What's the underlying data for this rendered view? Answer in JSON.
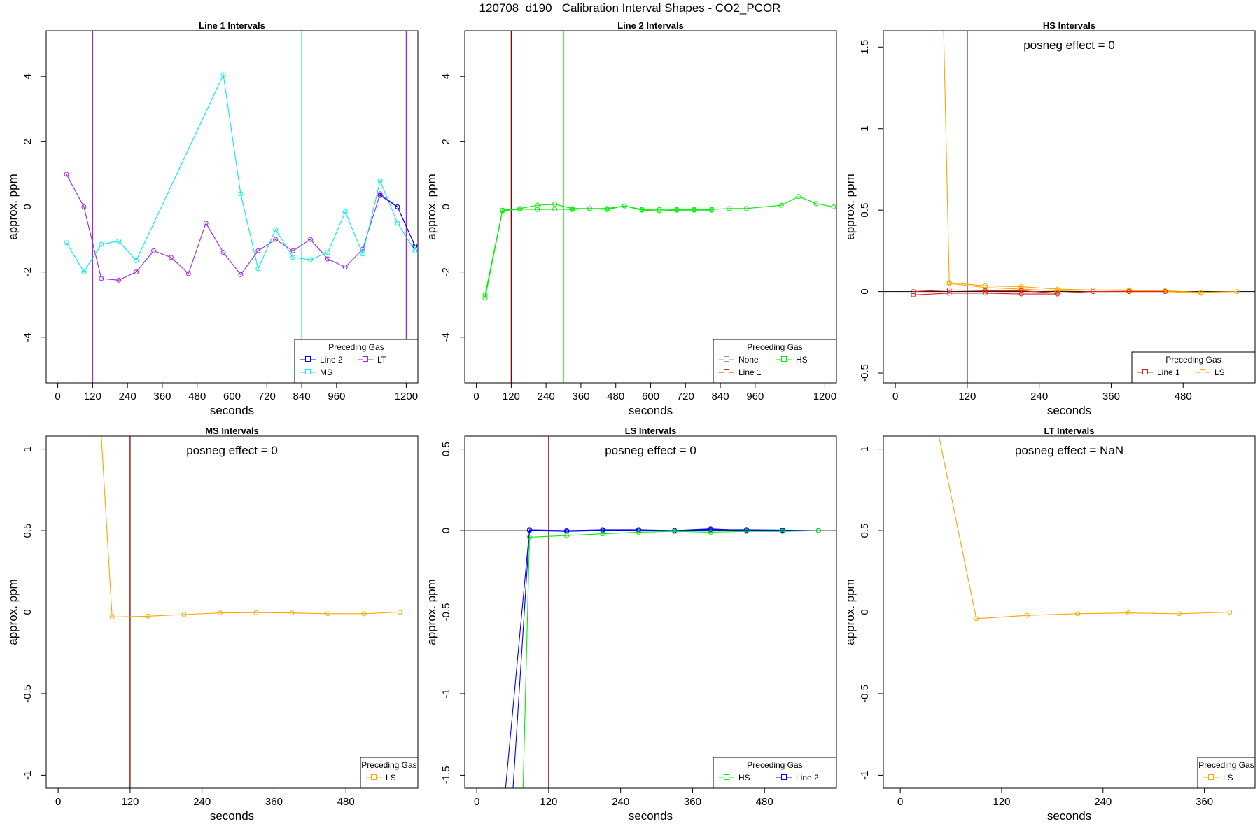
{
  "title": "120708  d190   Calibration Interval Shapes - CO2_PCOR",
  "colors": {
    "Line 1": "#dd2222",
    "Line 2": "#0000ff",
    "None": "#999999",
    "HS": "#00ee00",
    "MS": "#00eeee",
    "LS": "#ffa500",
    "LT": "#a020f0",
    "marker_line": "#8b0000",
    "axis": "#000000"
  },
  "chart_data": [
    {
      "type": "line",
      "title": "Line 1 Intervals",
      "xlabel": "seconds",
      "ylabel": "approx. ppm",
      "xlim": [
        -40,
        1240
      ],
      "ylim": [
        -5.4,
        5.4
      ],
      "xticks": [
        0,
        120,
        240,
        360,
        480,
        600,
        720,
        840,
        960,
        1200
      ],
      "yticks": [
        -4,
        -2,
        0,
        2,
        4
      ],
      "annotation": "",
      "legend": {
        "title": "Preceding Gas",
        "position": "bottom-right",
        "columns": 2,
        "entries": [
          "Line 2",
          "LT",
          "MS"
        ]
      },
      "vlines": [
        {
          "x": 120,
          "series": "Line 2"
        },
        {
          "x": 120,
          "series": "LT"
        },
        {
          "x": 840,
          "series": "MS"
        },
        {
          "x": 1200,
          "series": "LT"
        }
      ],
      "series": [
        {
          "name": "LT",
          "x": [
            30,
            90,
            150,
            210,
            270,
            330,
            390,
            450,
            510,
            570,
            630,
            690,
            750,
            810,
            870,
            930,
            990,
            1050,
            1110,
            1170,
            1230
          ],
          "y": [
            1.0,
            0.0,
            -2.2,
            -2.25,
            -2.0,
            -1.35,
            -1.55,
            -2.05,
            -0.5,
            -1.4,
            -2.08,
            -1.35,
            -1.0,
            -1.35,
            -1.0,
            -1.6,
            -1.85,
            -1.3,
            0.4,
            0.0,
            -1.2
          ]
        },
        {
          "name": "MS",
          "x": [
            30,
            90,
            150,
            210,
            270,
            570,
            630,
            690,
            750,
            810,
            870,
            930,
            990,
            1050,
            1110,
            1170,
            1230
          ],
          "y": [
            -1.1,
            -2.0,
            -1.15,
            -1.05,
            -1.65,
            4.05,
            0.4,
            -1.9,
            -0.7,
            -1.55,
            -1.62,
            -1.4,
            -0.15,
            -1.45,
            0.8,
            -0.5,
            -1.35
          ]
        },
        {
          "name": "Line 2",
          "x": [
            1110,
            1170,
            1230
          ],
          "y": [
            0.35,
            0.0,
            -1.2
          ]
        }
      ]
    },
    {
      "type": "line",
      "title": "Line 2 Intervals",
      "xlabel": "seconds",
      "ylabel": "approx. ppm",
      "xlim": [
        -40,
        1240
      ],
      "ylim": [
        -5.4,
        5.4
      ],
      "xticks": [
        0,
        120,
        240,
        360,
        480,
        600,
        720,
        840,
        960,
        1200
      ],
      "yticks": [
        -4,
        -2,
        0,
        2,
        4
      ],
      "annotation": "",
      "legend": {
        "title": "Preceding Gas",
        "position": "bottom-right",
        "columns": 2,
        "entries": [
          "None",
          "HS",
          "Line 1"
        ]
      },
      "vlines": [
        {
          "x": 120,
          "series": "marker_line"
        },
        {
          "x": 300,
          "series": "HS"
        }
      ],
      "series": [
        {
          "name": "HS",
          "x": [
            30,
            90,
            150,
            210,
            270,
            330,
            390,
            450,
            510,
            570,
            630,
            690,
            750,
            810,
            870,
            930,
            1050,
            1110,
            1170,
            1230
          ],
          "y": [
            -2.7,
            -0.1,
            -0.05,
            0.05,
            0.08,
            -0.05,
            -0.05,
            -0.05,
            0.03,
            -0.08,
            -0.08,
            -0.08,
            -0.08,
            -0.08,
            -0.05,
            -0.05,
            0.05,
            0.32,
            0.1,
            0.0
          ]
        },
        {
          "name": "HS",
          "x": [
            30,
            90,
            150,
            210,
            270,
            330,
            390,
            450,
            510,
            570,
            630,
            690,
            750,
            810
          ],
          "y": [
            -2.8,
            -0.12,
            -0.07,
            -0.08,
            -0.07,
            -0.08,
            -0.05,
            -0.08,
            0.03,
            -0.1,
            -0.12,
            -0.1,
            -0.1,
            -0.1
          ]
        }
      ]
    },
    {
      "type": "line",
      "title": "HS Intervals",
      "xlabel": "seconds",
      "ylabel": "approx. ppm",
      "xlim": [
        -20,
        600
      ],
      "ylim": [
        -0.56,
        1.6
      ],
      "xticks": [
        0,
        120,
        240,
        360,
        480
      ],
      "yticks": [
        -0.5,
        0.0,
        0.5,
        1.0,
        1.5
      ],
      "annotation": "posneg effect = 0",
      "legend": {
        "title": "Preceding Gas",
        "position": "bottom-right",
        "columns": 2,
        "entries": [
          "Line 1",
          "LS"
        ]
      },
      "vlines": [
        {
          "x": 120,
          "series": "marker_line"
        }
      ],
      "series": [
        {
          "name": "LS",
          "x": [
            75,
            90,
            150,
            210,
            270,
            330,
            390,
            450,
            510,
            570
          ],
          "y": [
            2.5,
            0.055,
            0.035,
            0.03,
            0.015,
            0.01,
            0.01,
            0.005,
            -0.005,
            0.0
          ]
        },
        {
          "name": "LS",
          "x": [
            90,
            150,
            210,
            270,
            330,
            390,
            450,
            510
          ],
          "y": [
            0.05,
            0.025,
            0.015,
            0.005,
            0.01,
            0.005,
            0.0,
            -0.01
          ]
        },
        {
          "name": "Line 1",
          "x": [
            30,
            90,
            150,
            210,
            270,
            330,
            390,
            450
          ],
          "y": [
            0.0,
            0.01,
            0.005,
            0.005,
            -0.01,
            0.0,
            0.0,
            0.0
          ]
        },
        {
          "name": "Line 1",
          "x": [
            30,
            90,
            150,
            210,
            270
          ],
          "y": [
            -0.02,
            -0.01,
            -0.01,
            -0.015,
            -0.015
          ]
        }
      ]
    },
    {
      "type": "line",
      "title": "MS Intervals",
      "xlabel": "seconds",
      "ylabel": "approx. ppm",
      "xlim": [
        -20,
        600
      ],
      "ylim": [
        -1.08,
        1.08
      ],
      "xticks": [
        0,
        120,
        240,
        360,
        480
      ],
      "yticks": [
        -1.0,
        -0.5,
        0.0,
        0.5,
        1.0
      ],
      "annotation": "posneg effect = 0",
      "legend": {
        "title": "Preceding Gas",
        "position": "bottom-right",
        "columns": 1,
        "entries": [
          "LS"
        ]
      },
      "vlines": [
        {
          "x": 120,
          "series": "marker_line"
        }
      ],
      "series": [
        {
          "name": "LS",
          "x": [
            70,
            90,
            150,
            210,
            270,
            330,
            390,
            450,
            510,
            570
          ],
          "y": [
            1.2,
            -0.03,
            -0.025,
            -0.015,
            -0.005,
            -0.003,
            -0.005,
            -0.01,
            -0.01,
            0.0
          ]
        }
      ]
    },
    {
      "type": "line",
      "title": "LS Intervals",
      "xlabel": "seconds",
      "ylabel": "approx. ppm",
      "xlim": [
        -20,
        600
      ],
      "ylim": [
        -1.58,
        0.58
      ],
      "xticks": [
        0,
        120,
        240,
        360,
        480
      ],
      "yticks": [
        -1.5,
        -1.0,
        -0.5,
        0.0,
        0.5
      ],
      "annotation": "posneg effect = 0",
      "legend": {
        "title": "Preceding Gas",
        "position": "bottom-right",
        "columns": 2,
        "entries": [
          "HS",
          "Line 2"
        ]
      },
      "vlines": [
        {
          "x": 120,
          "series": "marker_line"
        }
      ],
      "series": [
        {
          "name": "Line 2",
          "x": [
            40,
            88,
            150,
            210,
            270,
            330,
            390,
            450,
            510,
            570
          ],
          "y": [
            -1.9,
            0.005,
            0.0,
            0.005,
            0.005,
            0.0,
            0.005,
            0.005,
            0.003,
            0.0
          ]
        },
        {
          "name": "Line 2",
          "x": [
            55,
            88,
            150,
            210,
            270,
            330,
            390,
            450,
            510,
            570
          ],
          "y": [
            -1.9,
            0.0,
            -0.005,
            0.0,
            0.0,
            0.0,
            0.01,
            0.0,
            0.0,
            0.0
          ]
        },
        {
          "name": "HS",
          "x": [
            75,
            88,
            150,
            210,
            270,
            330,
            390,
            450,
            510,
            570
          ],
          "y": [
            -1.9,
            -0.04,
            -0.03,
            -0.02,
            -0.01,
            -0.005,
            -0.01,
            -0.005,
            -0.005,
            0.0
          ]
        }
      ]
    },
    {
      "type": "line",
      "title": "LT Intervals",
      "xlabel": "seconds",
      "ylabel": "approx. ppm",
      "xlim": [
        -20,
        420
      ],
      "ylim": [
        -1.08,
        1.08
      ],
      "xticks": [
        0,
        120,
        240,
        360
      ],
      "yticks": [
        -1.0,
        -0.5,
        0.0,
        0.5,
        1.0
      ],
      "annotation": "posneg effect = NaN",
      "legend": {
        "title": "Preceding Gas",
        "position": "bottom-right",
        "columns": 1,
        "entries": [
          "LS"
        ]
      },
      "vlines": [],
      "series": [
        {
          "name": "LS",
          "x": [
            45,
            90,
            150,
            210,
            270,
            330,
            390
          ],
          "y": [
            1.1,
            -0.04,
            -0.02,
            -0.01,
            -0.005,
            -0.01,
            0.0
          ]
        }
      ]
    }
  ]
}
